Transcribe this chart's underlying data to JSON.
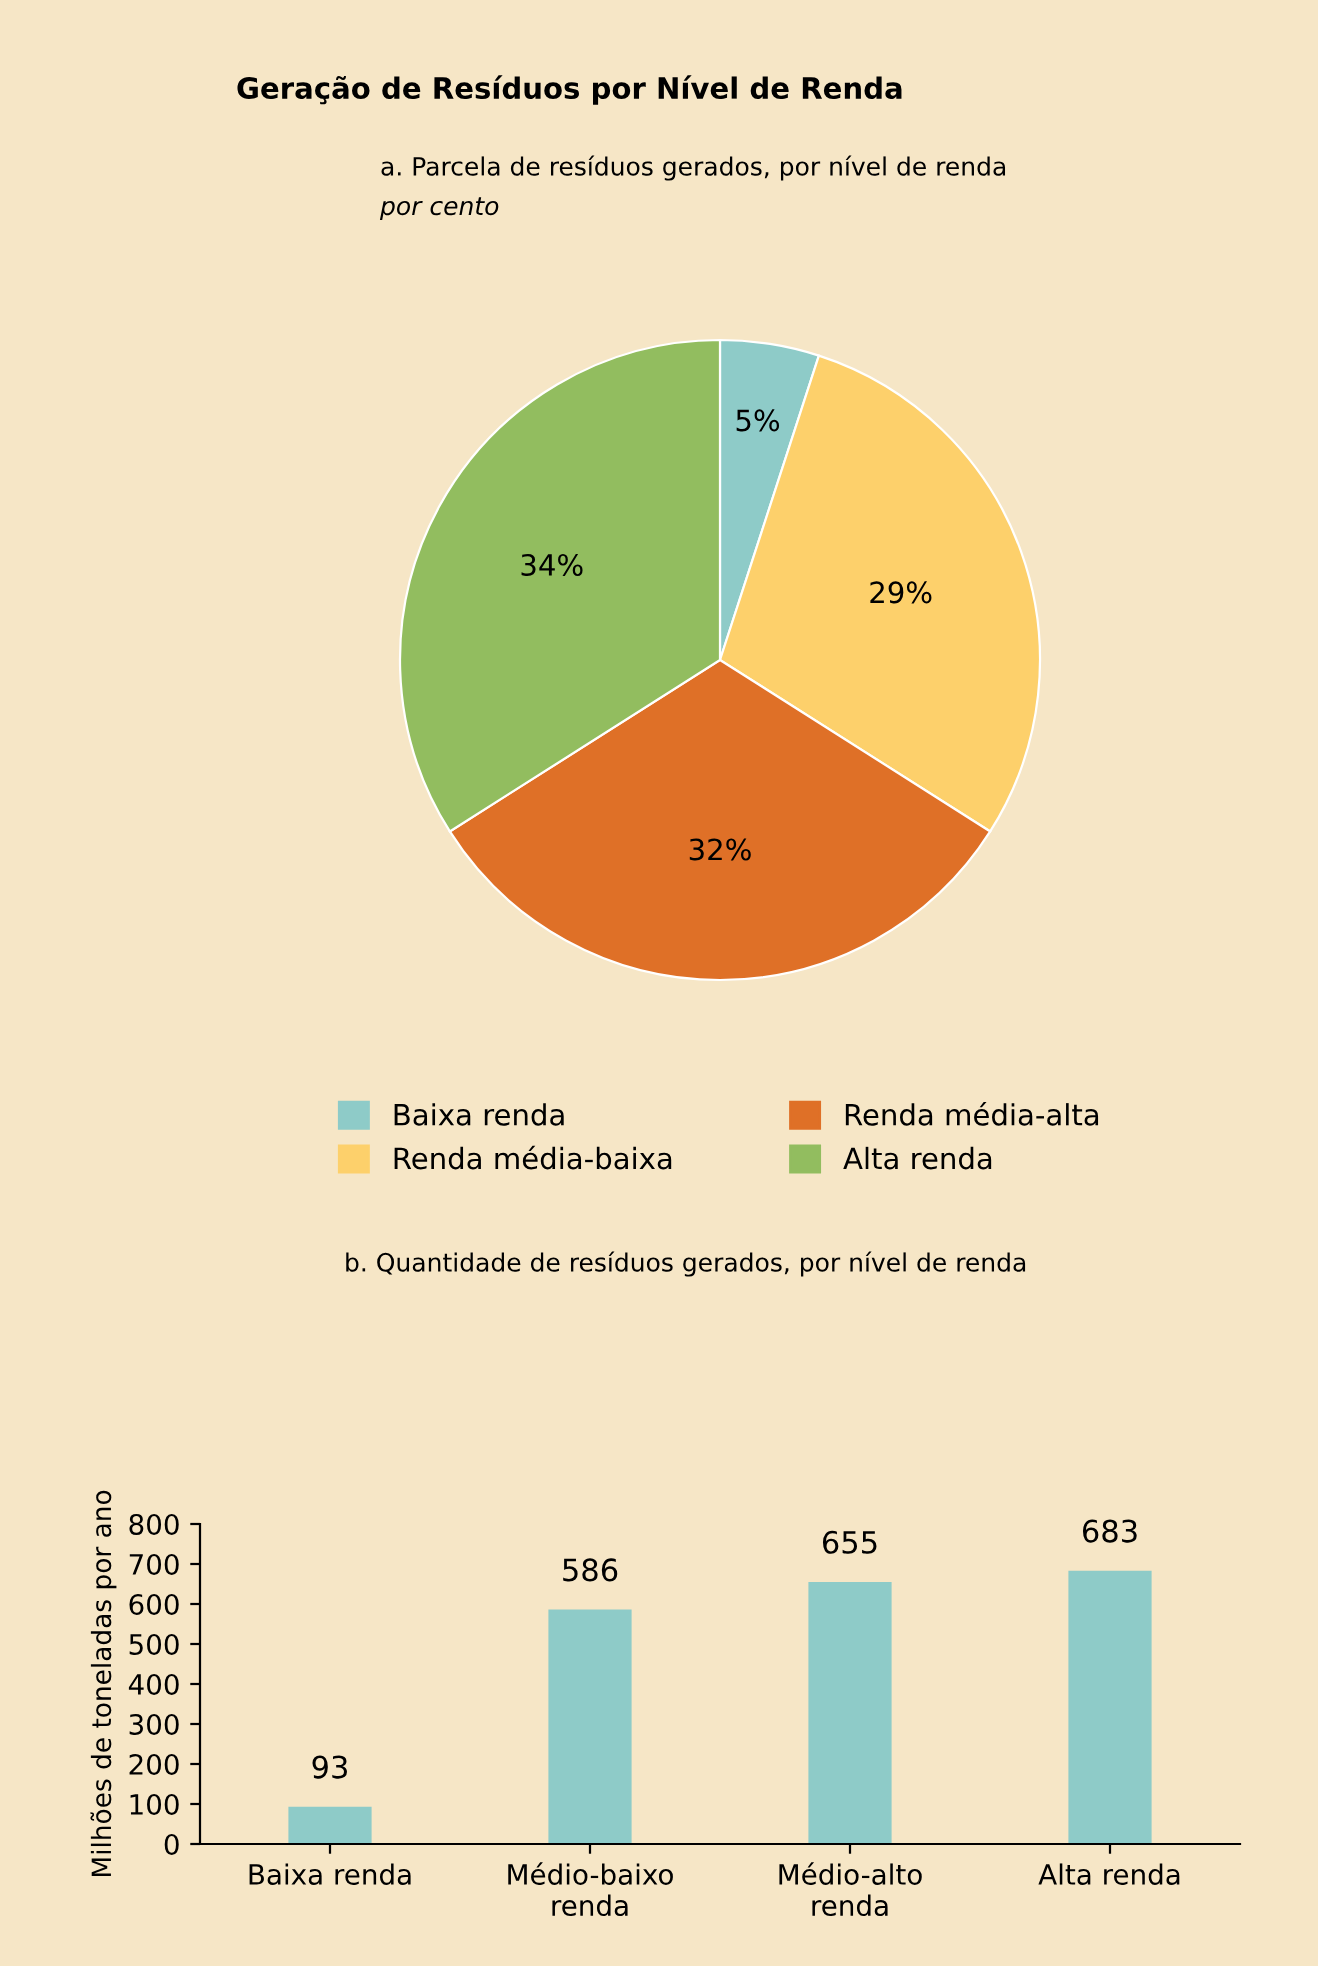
{
  "chart_data": [
    {
      "type": "pie",
      "title": "Geração de Resíduos por Nível de Renda",
      "subtitle": "a. Parcela de resíduos gerados, por nível de renda",
      "annotations": [
        "por cento"
      ],
      "categories": [
        "Baixa renda",
        "Renda média-baixa",
        "Renda média-alta",
        "Alta renda"
      ],
      "values": [
        5,
        29,
        32,
        34
      ],
      "value_labels": [
        "5%",
        "29%",
        "32%",
        "34%"
      ],
      "colors": [
        "#8ecbc8",
        "#fdd06b",
        "#df7027",
        "#92bd5f"
      ],
      "legend": "bottom"
    },
    {
      "type": "bar",
      "subtitle": "b. Quantidade de resíduos gerados, por nível de renda",
      "ylabel": "Milhões de toneladas por ano",
      "categories": [
        "Baixa renda",
        "Médio-baixo\nrenda",
        "Médio-alto\nrenda",
        "Alta renda"
      ],
      "values": [
        93,
        586,
        655,
        683
      ],
      "color": "#8ecbc8",
      "ylim": [
        0,
        800
      ],
      "yticks": [
        0,
        100,
        200,
        300,
        400,
        500,
        600,
        700,
        800
      ],
      "data_labels": true,
      "grid": false
    }
  ]
}
